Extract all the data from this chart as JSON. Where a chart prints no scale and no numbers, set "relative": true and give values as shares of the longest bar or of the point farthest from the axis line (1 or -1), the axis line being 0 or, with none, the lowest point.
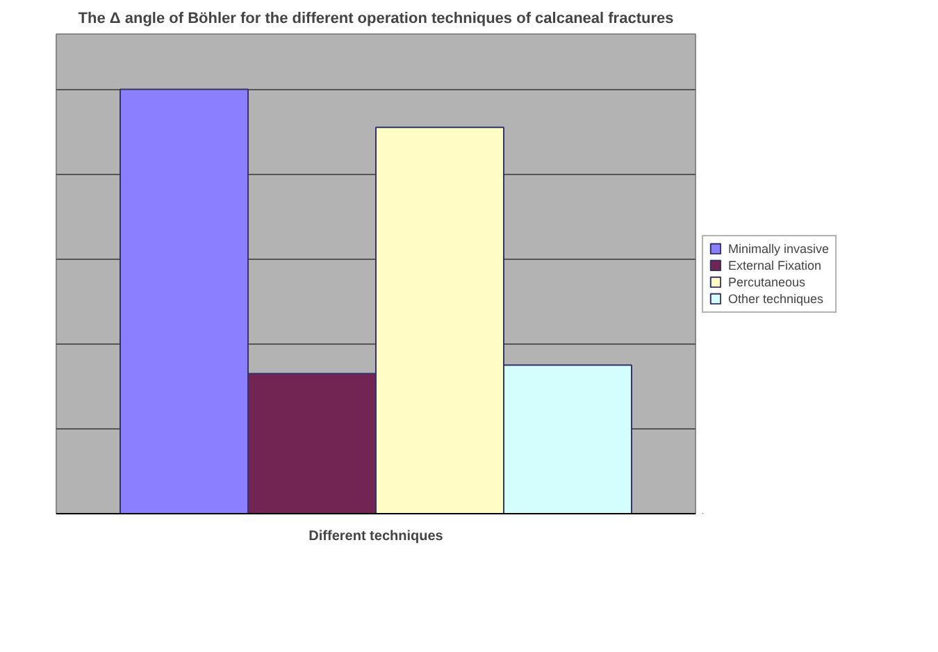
{
  "chart_data": {
    "type": "bar",
    "title": "The Δ angle of Böhler for the different operation techniques of calcaneal fractures",
    "xlabel": "Different techniques",
    "categories": [
      null
    ],
    "relative": true,
    "grid": "y",
    "legend": "right",
    "series": [
      {
        "name": "Minimally invasive",
        "color": "#8a80ff",
        "values": [
          1
        ]
      },
      {
        "name": "External Fixation",
        "color": "#722552",
        "values": [
          0.33
        ]
      },
      {
        "name": "Percutaneous",
        "color": "#fffcc6",
        "values": [
          0.91
        ]
      },
      {
        "name": "Other techniques",
        "color": "#d4fdfd",
        "values": [
          0.35
        ]
      }
    ]
  }
}
